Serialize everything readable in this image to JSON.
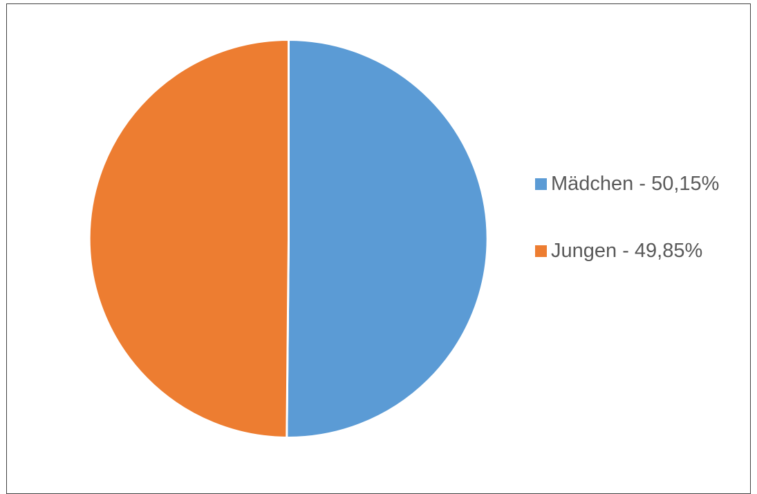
{
  "chart_data": {
    "type": "pie",
    "title": "",
    "slices": [
      {
        "label": "Mädchen - 50,15%",
        "value": 50.15,
        "color": "#5B9BD5"
      },
      {
        "label": "Jungen - 49,85%",
        "value": 49.85,
        "color": "#ED7D31"
      }
    ],
    "start_angle_deg": 0,
    "direction": "clockwise",
    "legend_position": "right",
    "slice_border_color": "#FFFFFF"
  }
}
